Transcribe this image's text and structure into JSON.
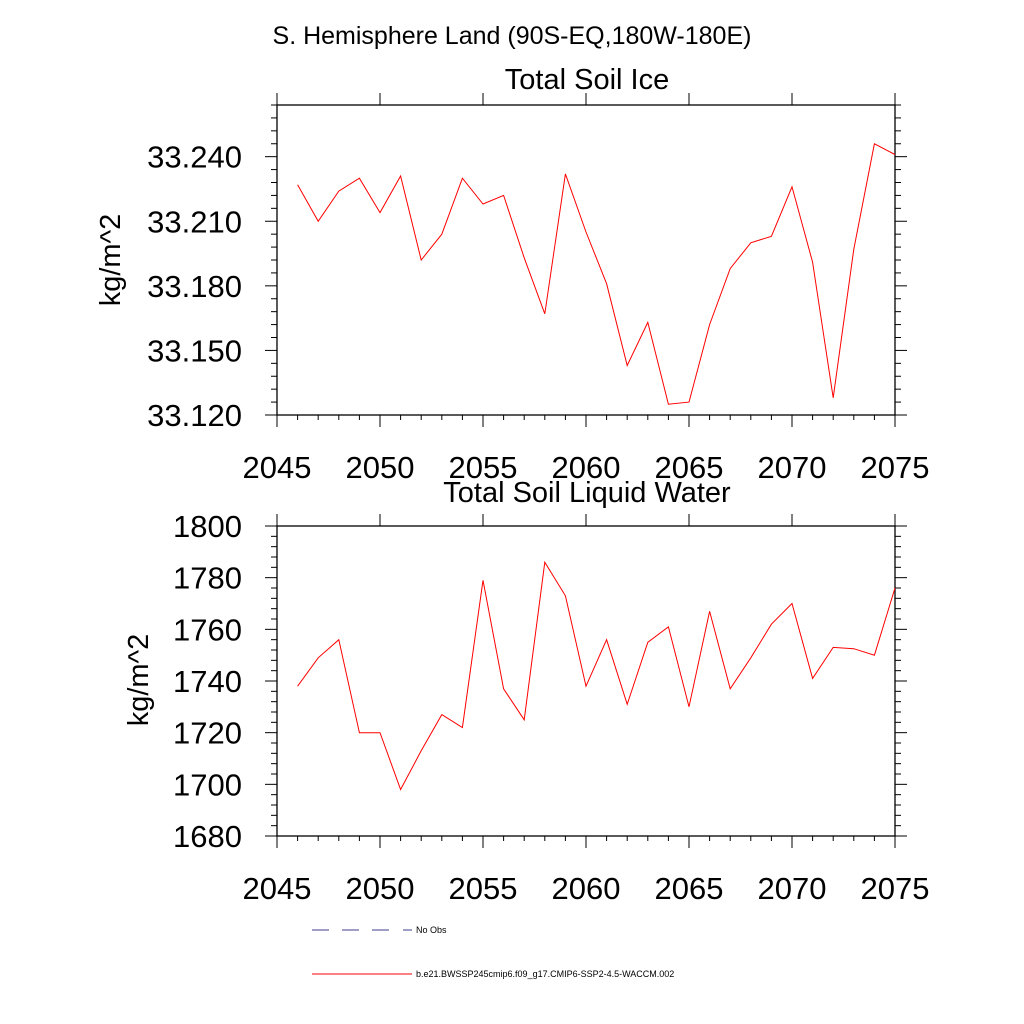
{
  "figure": {
    "suptitle": "S. Hemisphere Land (90S-EQ,180W-180E)"
  },
  "chart_data": [
    {
      "type": "line",
      "title": "Total Soil Ice",
      "xlabel": "",
      "ylabel": "kg/m^2",
      "xlim": [
        2045,
        2075
      ],
      "ylim": [
        33.12,
        33.264
      ],
      "xticks": [
        "2045",
        "2050",
        "2055",
        "2060",
        "2065",
        "2070",
        "2075"
      ],
      "xtick_values": [
        2045,
        2050,
        2055,
        2060,
        2065,
        2070,
        2075
      ],
      "yticks": [
        "33.120",
        "33.150",
        "33.180",
        "33.210",
        "33.240"
      ],
      "ytick_values": [
        33.12,
        33.15,
        33.18,
        33.21,
        33.24
      ],
      "x": [
        2046,
        2047,
        2048,
        2049,
        2050,
        2051,
        2052,
        2053,
        2054,
        2055,
        2056,
        2057,
        2058,
        2059,
        2060,
        2061,
        2062,
        2063,
        2064,
        2065,
        2066,
        2067,
        2068,
        2069,
        2070,
        2071,
        2072,
        2073,
        2074,
        2075
      ],
      "series": [
        {
          "name": "b.e21.BWSSP245cmip6.f09_g17.CMIP6-SSP2-4.5-WACCM.002",
          "color": "#ff0000",
          "values": [
            33.227,
            33.21,
            33.224,
            33.23,
            33.214,
            33.231,
            33.192,
            33.204,
            33.23,
            33.218,
            33.222,
            33.193,
            33.167,
            33.232,
            33.205,
            33.181,
            33.143,
            33.163,
            33.125,
            33.126,
            33.162,
            33.188,
            33.2,
            33.203,
            33.226,
            33.191,
            33.128,
            33.197,
            33.246,
            33.241
          ]
        }
      ]
    },
    {
      "type": "line",
      "title": "Total Soil Liquid Water",
      "xlabel": "",
      "ylabel": "kg/m^2",
      "xlim": [
        2045,
        2075
      ],
      "ylim": [
        1680,
        1800
      ],
      "xticks": [
        "2045",
        "2050",
        "2055",
        "2060",
        "2065",
        "2070",
        "2075"
      ],
      "xtick_values": [
        2045,
        2050,
        2055,
        2060,
        2065,
        2070,
        2075
      ],
      "yticks": [
        "1680",
        "1700",
        "1720",
        "1740",
        "1760",
        "1780",
        "1800"
      ],
      "ytick_values": [
        1680,
        1700,
        1720,
        1740,
        1760,
        1780,
        1800
      ],
      "x": [
        2046,
        2047,
        2048,
        2049,
        2050,
        2051,
        2052,
        2053,
        2054,
        2055,
        2056,
        2057,
        2058,
        2059,
        2060,
        2061,
        2062,
        2063,
        2064,
        2065,
        2066,
        2067,
        2068,
        2069,
        2070,
        2071,
        2072,
        2073,
        2074,
        2075
      ],
      "series": [
        {
          "name": "b.e21.BWSSP245cmip6.f09_g17.CMIP6-SSP2-4.5-WACCM.002",
          "color": "#ff0000",
          "values": [
            1738,
            1749,
            1756,
            1720,
            1720,
            1698,
            1713,
            1727,
            1722,
            1779,
            1737,
            1725,
            1786,
            1773,
            1738,
            1756,
            1731,
            1755,
            1761,
            1730,
            1767,
            1737,
            1749,
            1762,
            1770,
            1741,
            1753,
            1752.5,
            1750,
            1776
          ]
        }
      ]
    }
  ],
  "legend": {
    "items": [
      {
        "label": "No Obs",
        "color": "#3d3d8c",
        "style": "dashed"
      },
      {
        "label": "b.e21.BWSSP245cmip6.f09_g17.CMIP6-SSP2-4.5-WACCM.002",
        "color": "#ff0000",
        "style": "solid"
      }
    ]
  }
}
